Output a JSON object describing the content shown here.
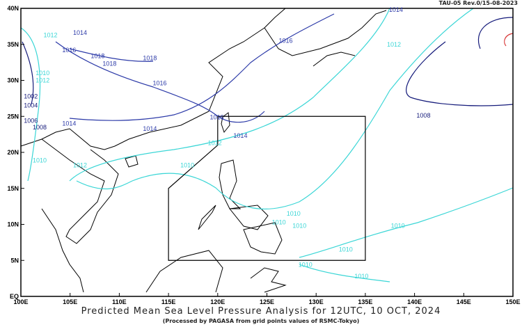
{
  "header": {
    "revision": "TAU-05 Rev.0/15-08-2023"
  },
  "footer": {
    "title": "Predicted Mean Sea Level Pressure Analysis for 12UTC, 10 OCT, 2024",
    "subtitle": "(Processed by PAGASA from grid points values of RSMC-Tokyo)"
  },
  "map": {
    "lon_range": [
      100,
      150
    ],
    "lat_range": [
      0,
      40
    ],
    "lon_ticks": [
      "100E",
      "105E",
      "110E",
      "115E",
      "120E",
      "125E",
      "130E",
      "135E",
      "140E",
      "145E",
      "150E"
    ],
    "lat_ticks": [
      "EQ",
      "5N",
      "10N",
      "15N",
      "20N",
      "25N",
      "30N",
      "35N",
      "40N"
    ],
    "colors": {
      "cyan": "#3ad6d6",
      "blue": "#2c3aa8",
      "navy": "#141a7a",
      "red": "#d83a3a",
      "coast": "#000000"
    },
    "contour_labels": [
      {
        "text": "1014",
        "c": "blue",
        "lon": 137.4,
        "lat": 39.8
      },
      {
        "text": "1012",
        "c": "cyan",
        "lon": 102.3,
        "lat": 36.3
      },
      {
        "text": "1014",
        "c": "blue",
        "lon": 105.3,
        "lat": 36.6
      },
      {
        "text": "1016",
        "c": "blue",
        "lon": 104.2,
        "lat": 34.2
      },
      {
        "text": "1018",
        "c": "blue",
        "lon": 107.1,
        "lat": 33.4
      },
      {
        "text": "1018",
        "c": "blue",
        "lon": 112.4,
        "lat": 33.1
      },
      {
        "text": "1018",
        "c": "blue",
        "lon": 108.3,
        "lat": 32.3
      },
      {
        "text": "1016",
        "c": "blue",
        "lon": 113.4,
        "lat": 29.6
      },
      {
        "text": "1016",
        "c": "blue",
        "lon": 126.2,
        "lat": 35.5
      },
      {
        "text": "1012",
        "c": "cyan",
        "lon": 137.2,
        "lat": 35.0
      },
      {
        "text": "1010",
        "c": "cyan",
        "lon": 101.5,
        "lat": 31.0
      },
      {
        "text": "1012",
        "c": "cyan",
        "lon": 101.5,
        "lat": 30.0
      },
      {
        "text": "1002",
        "c": "navy",
        "lon": 100.3,
        "lat": 27.8
      },
      {
        "text": "1004",
        "c": "navy",
        "lon": 100.3,
        "lat": 26.5
      },
      {
        "text": "1006",
        "c": "navy",
        "lon": 100.3,
        "lat": 24.4
      },
      {
        "text": "1008",
        "c": "navy",
        "lon": 101.2,
        "lat": 23.5
      },
      {
        "text": "1014",
        "c": "blue",
        "lon": 104.2,
        "lat": 24.0
      },
      {
        "text": "1014",
        "c": "blue",
        "lon": 112.4,
        "lat": 23.3
      },
      {
        "text": "1016",
        "c": "blue",
        "lon": 119.2,
        "lat": 24.9
      },
      {
        "text": "1014",
        "c": "blue",
        "lon": 121.6,
        "lat": 22.3
      },
      {
        "text": "1012",
        "c": "cyan",
        "lon": 119.0,
        "lat": 21.3
      },
      {
        "text": "1008",
        "c": "navy",
        "lon": 140.2,
        "lat": 25.1
      },
      {
        "text": "1010",
        "c": "cyan",
        "lon": 101.2,
        "lat": 18.9
      },
      {
        "text": "1012",
        "c": "cyan",
        "lon": 105.3,
        "lat": 18.2
      },
      {
        "text": "1010",
        "c": "cyan",
        "lon": 116.2,
        "lat": 18.2
      },
      {
        "text": "1010",
        "c": "cyan",
        "lon": 127.0,
        "lat": 11.5
      },
      {
        "text": "1010",
        "c": "cyan",
        "lon": 125.5,
        "lat": 10.3
      },
      {
        "text": "1010",
        "c": "cyan",
        "lon": 127.6,
        "lat": 9.8
      },
      {
        "text": "1010",
        "c": "cyan",
        "lon": 137.6,
        "lat": 9.8
      },
      {
        "text": "1010",
        "c": "cyan",
        "lon": 132.3,
        "lat": 6.5
      },
      {
        "text": "1010",
        "c": "cyan",
        "lon": 128.2,
        "lat": 4.4
      },
      {
        "text": "1010",
        "c": "cyan",
        "lon": 133.9,
        "lat": 2.8
      }
    ],
    "area_of_responsibility": [
      [
        120,
        25
      ],
      [
        135,
        25
      ],
      [
        135,
        5
      ],
      [
        115,
        5
      ],
      [
        115,
        15
      ],
      [
        120,
        21
      ],
      [
        120,
        25
      ]
    ]
  }
}
